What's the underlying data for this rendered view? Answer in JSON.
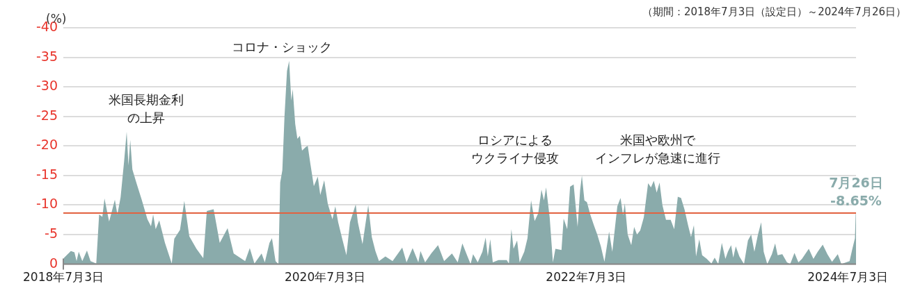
{
  "chart_data": {
    "type": "area",
    "subtitle": "（期間：2018年7月3日（設定日）～2024年7月26日）",
    "ylabel": "(%)",
    "x": [
      "2018-07-04",
      "2018-07-24",
      "2018-08-03",
      "2018-08-09",
      "2018-08-15",
      "2018-08-25",
      "2018-09-07",
      "2018-09-17",
      "2018-10-03",
      "2018-10-11",
      "2018-10-20",
      "2018-10-26",
      "2018-11-08",
      "2018-11-24",
      "2018-12-01",
      "2018-12-10",
      "2018-12-20",
      "2018-12-27",
      "2019-01-01",
      "2019-01-06",
      "2019-01-12",
      "2019-01-25",
      "2019-02-07",
      "2019-02-23",
      "2019-03-05",
      "2019-03-11",
      "2019-03-18",
      "2019-03-28",
      "2019-04-13",
      "2019-05-02",
      "2019-05-09",
      "2019-05-25",
      "2019-06-06",
      "2019-06-20",
      "2019-07-10",
      "2019-07-29",
      "2019-08-08",
      "2019-08-27",
      "2019-09-13",
      "2019-10-05",
      "2019-10-22",
      "2019-11-23",
      "2019-12-06",
      "2019-12-19",
      "2020-01-08",
      "2020-01-17",
      "2020-01-30",
      "2020-02-06",
      "2020-02-16",
      "2020-02-24",
      "2020-02-29",
      "2020-03-06",
      "2020-03-12",
      "2020-03-19",
      "2020-03-25",
      "2020-03-31",
      "2020-04-04",
      "2020-04-11",
      "2020-04-17",
      "2020-04-24",
      "2020-04-30",
      "2020-05-10",
      "2020-05-16",
      "2020-05-23",
      "2020-06-02",
      "2020-06-13",
      "2020-06-20",
      "2020-07-01",
      "2020-07-11",
      "2020-07-24",
      "2020-08-01",
      "2020-08-09",
      "2020-08-19",
      "2020-09-01",
      "2020-09-11",
      "2020-09-27",
      "2020-10-03",
      "2020-10-16",
      "2020-11-01",
      "2020-11-11",
      "2020-11-21",
      "2020-12-01",
      "2020-12-19",
      "2021-01-08",
      "2021-02-04",
      "2021-02-16",
      "2021-03-05",
      "2021-03-21",
      "2021-03-27",
      "2021-04-09",
      "2021-04-26",
      "2021-05-15",
      "2021-06-01",
      "2021-06-23",
      "2021-07-09",
      "2021-07-22",
      "2021-08-04",
      "2021-08-14",
      "2021-08-21",
      "2021-09-03",
      "2021-09-16",
      "2021-09-25",
      "2021-10-01",
      "2021-10-08",
      "2021-10-15",
      "2021-10-31",
      "2021-11-23",
      "2021-11-29",
      "2021-12-06",
      "2021-12-12",
      "2021-12-22",
      "2021-12-29",
      "2022-01-11",
      "2022-01-20",
      "2022-01-30",
      "2022-02-09",
      "2022-02-19",
      "2022-02-28",
      "2022-03-07",
      "2022-03-13",
      "2022-03-23",
      "2022-04-01",
      "2022-04-08",
      "2022-04-25",
      "2022-05-01",
      "2022-05-11",
      "2022-05-19",
      "2022-05-29",
      "2022-06-09",
      "2022-06-16",
      "2022-06-21",
      "2022-06-28",
      "2022-07-05",
      "2022-07-15",
      "2022-07-25",
      "2022-08-03",
      "2022-08-13",
      "2022-08-23",
      "2022-09-05",
      "2022-09-14",
      "2022-09-28",
      "2022-10-07",
      "2022-10-14",
      "2022-10-19",
      "2022-10-27",
      "2022-11-06",
      "2022-11-14",
      "2022-11-22",
      "2022-12-01",
      "2022-12-11",
      "2022-12-23",
      "2022-12-31",
      "2023-01-08",
      "2023-01-16",
      "2023-01-24",
      "2023-02-01",
      "2023-02-11",
      "2023-02-24",
      "2023-03-06",
      "2023-03-16",
      "2023-03-25",
      "2023-04-04",
      "2023-04-14",
      "2023-04-22",
      "2023-04-30",
      "2023-05-06",
      "2023-05-15",
      "2023-05-23",
      "2023-06-05",
      "2023-06-18",
      "2023-06-27",
      "2023-07-07",
      "2023-07-17",
      "2023-07-27",
      "2023-08-03",
      "2023-08-12",
      "2023-08-18",
      "2023-08-25",
      "2023-09-04",
      "2023-09-17",
      "2023-09-28",
      "2023-10-07",
      "2023-10-16",
      "2023-10-26",
      "2023-11-04",
      "2023-11-11",
      "2023-11-21",
      "2023-12-04",
      "2023-12-13",
      "2023-12-20",
      "2024-01-02",
      "2024-01-15",
      "2024-01-24",
      "2024-02-05",
      "2024-02-16",
      "2024-02-26",
      "2024-03-16",
      "2024-03-29",
      "2024-04-10",
      "2024-04-24",
      "2024-05-07",
      "2024-05-20",
      "2024-06-05",
      "2024-06-15",
      "2024-07-08",
      "2024-07-15",
      "2024-07-23",
      "2024-07-25",
      "2024-07-26"
    ],
    "values": [
      -1.0,
      -2.2,
      -2.0,
      -0.5,
      -2.1,
      -0.5,
      -2.3,
      -0.5,
      -0.1,
      -8.4,
      -8.0,
      -11.1,
      -7.2,
      -10.9,
      -8.4,
      -11.3,
      -17.5,
      -22.4,
      -16.7,
      -21.0,
      -16.0,
      -13.4,
      -10.9,
      -7.6,
      -6.4,
      -8.4,
      -5.9,
      -7.4,
      -3.6,
      -0.1,
      -4.3,
      -5.8,
      -10.7,
      -4.7,
      -2.6,
      -1.0,
      -9.0,
      -9.3,
      -3.6,
      -6.1,
      -1.8,
      -0.5,
      -2.7,
      -0.1,
      -1.8,
      -0.3,
      -3.6,
      -4.4,
      -0.5,
      0,
      -13.8,
      -15.9,
      -25.0,
      -32.7,
      -34.4,
      -27.7,
      -29.6,
      -23.7,
      -21.2,
      -21.7,
      -19.2,
      -19.8,
      -20.0,
      -17.1,
      -13.2,
      -14.8,
      -11.7,
      -14.2,
      -10.2,
      -7.6,
      -9.8,
      -7.1,
      -4.6,
      -1.5,
      -7.1,
      -10.1,
      -7.1,
      -3.4,
      -10.0,
      -4.6,
      -2.2,
      -0.5,
      -1.3,
      -0.5,
      -2.8,
      -0.3,
      -2.7,
      -0.3,
      -2.2,
      -0.3,
      -1.8,
      -3.2,
      -0.5,
      -1.8,
      -0.3,
      -3.5,
      -1.5,
      0,
      -1.7,
      -0.3,
      -2.1,
      -4.5,
      -1.3,
      -4.2,
      -0.3,
      -0.7,
      -0.7,
      -0.1,
      -5.9,
      -2.6,
      -4.0,
      -0.3,
      -2.1,
      -4.4,
      -10.8,
      -7.3,
      -8.6,
      -12.6,
      -10.8,
      -13.0,
      -7.9,
      -0.3,
      -2.6,
      -2.4,
      -7.7,
      -5.9,
      -13.1,
      -13.5,
      -6.3,
      -12.5,
      -15.0,
      -10.8,
      -10.5,
      -8.3,
      -6.5,
      -5.0,
      -3.0,
      -0.4,
      -5.5,
      -2.1,
      -9.8,
      -11.2,
      -8.3,
      -10.3,
      -5.0,
      -3.2,
      -6.3,
      -5.0,
      -5.7,
      -7.9,
      -13.7,
      -13.0,
      -14.1,
      -12.1,
      -13.8,
      -10.0,
      -7.5,
      -7.5,
      -5.9,
      -11.4,
      -11.2,
      -9.2,
      -6.5,
      -4.6,
      -6.6,
      -1.3,
      -4.2,
      -1.5,
      -0.9,
      -0.1,
      -1.1,
      0,
      -3.6,
      -0.9,
      -2.1,
      -3.2,
      -1.1,
      -3.0,
      -1.3,
      0,
      -4.0,
      -5.0,
      -2.1,
      -5.0,
      -7.1,
      -2.1,
      0,
      -1.7,
      -3.5,
      -1.5,
      -1.7,
      -0.3,
      0,
      -1.9,
      -0.3,
      -0.9,
      -2.6,
      -0.9,
      -2.1,
      -3.3,
      -1.7,
      -0.4,
      -1.7,
      0,
      -0.5,
      -2.4,
      -4.4,
      -8.4,
      -8.65
    ],
    "color": "#8aabab",
    "xlim": [
      "2018-07-03",
      "2024-07-26"
    ],
    "xticks": [
      {
        "value": "2018-07-03",
        "label": "2018年7月3日"
      },
      {
        "value": "2020-07-03",
        "label": "2020年7月3日"
      },
      {
        "value": "2022-07-03",
        "label": "2022年7月3日"
      },
      {
        "value": "2024-07-03",
        "label": "2024年7月3日"
      }
    ],
    "ylim": [
      0,
      -40
    ],
    "yticks": [
      0,
      -5,
      -10,
      -15,
      -20,
      -25,
      -30,
      -35,
      -40
    ],
    "grid": "y",
    "legend": false,
    "ref_lines": [
      {
        "axis": "y",
        "value": -8.65,
        "color": "#e2613f"
      }
    ],
    "annotations": [
      "米国長期金利の上昇",
      "コロナ・ショック",
      "ロシアによるウクライナ侵攻",
      "米国や欧州でインフレが急速に進行",
      {
        "text": "7月26日 -8.65%",
        "x": "2024-07-26",
        "y": -8.65
      }
    ]
  }
}
